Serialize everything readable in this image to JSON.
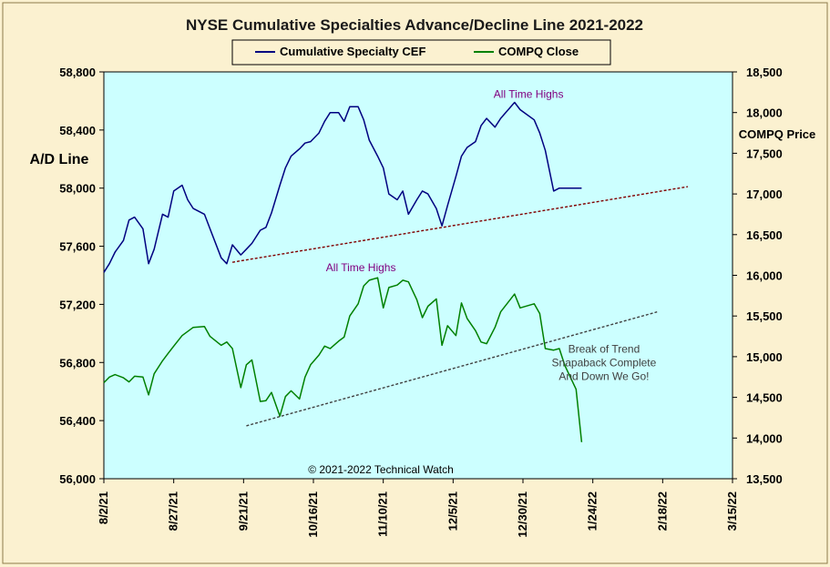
{
  "chart_data": {
    "type": "line",
    "title": "NYSE Cumulative  Specialties  Advance/Decline  Line  2021-2022",
    "ylabel_left": "A/D Line",
    "ylabel_right": "COMPQ Price",
    "ylim_left": [
      56000,
      58800
    ],
    "ylim_right": [
      13500,
      18500
    ],
    "y_ticks_left": [
      "58,800",
      "58,400",
      "58,000",
      "57,600",
      "57,200",
      "56,800",
      "56,400",
      "56,000"
    ],
    "y_ticks_right": [
      "18,500",
      "18,000",
      "17,500",
      "17,000",
      "16,500",
      "16,000",
      "15,500",
      "15,000",
      "14,500",
      "14,000",
      "13,500"
    ],
    "x_ticks": [
      "8/2/21",
      "8/27/21",
      "9/21/21",
      "10/16/21",
      "11/10/21",
      "12/5/21",
      "12/30/21",
      "1/24/22",
      "2/18/22",
      "3/15/22"
    ],
    "x_range": [
      "2021-08-02",
      "2022-03-15"
    ],
    "grid": false,
    "legend_position": "top-center",
    "colors": {
      "plot_bg": "#ccffff",
      "frame_bg": "#fbf1d0",
      "ad_line": "#000080",
      "compq": "#008000",
      "ad_trend": "#800000",
      "compq_trend": "#404040",
      "annotation_high": "#800080",
      "annotation_break": "#404040"
    },
    "series": [
      {
        "name": "Cumulative Specialty CEF",
        "axis": "left",
        "x": [
          "2021-08-02",
          "2021-08-04",
          "2021-08-06",
          "2021-08-09",
          "2021-08-11",
          "2021-08-13",
          "2021-08-16",
          "2021-08-18",
          "2021-08-20",
          "2021-08-23",
          "2021-08-25",
          "2021-08-27",
          "2021-08-30",
          "2021-09-01",
          "2021-09-03",
          "2021-09-07",
          "2021-09-09",
          "2021-09-13",
          "2021-09-15",
          "2021-09-17",
          "2021-09-20",
          "2021-09-22",
          "2021-09-24",
          "2021-09-27",
          "2021-09-29",
          "2021-10-01",
          "2021-10-04",
          "2021-10-06",
          "2021-10-08",
          "2021-10-11",
          "2021-10-13",
          "2021-10-15",
          "2021-10-18",
          "2021-10-20",
          "2021-10-22",
          "2021-10-25",
          "2021-10-27",
          "2021-10-29",
          "2021-11-01",
          "2021-11-03",
          "2021-11-05",
          "2021-11-08",
          "2021-11-10",
          "2021-11-12",
          "2021-11-15",
          "2021-11-17",
          "2021-11-19",
          "2021-11-22",
          "2021-11-24",
          "2021-11-26",
          "2021-11-29",
          "2021-12-01",
          "2021-12-03",
          "2021-12-06",
          "2021-12-08",
          "2021-12-10",
          "2021-12-13",
          "2021-12-15",
          "2021-12-17",
          "2021-12-20",
          "2021-12-22",
          "2021-12-27",
          "2021-12-29",
          "2022-01-03",
          "2022-01-05",
          "2022-01-07",
          "2022-01-10",
          "2022-01-12",
          "2022-01-14",
          "2022-01-18",
          "2022-01-20"
        ],
        "values": [
          57420,
          57480,
          57560,
          57640,
          57780,
          57800,
          57720,
          57480,
          57580,
          57820,
          57800,
          57980,
          58020,
          57920,
          57860,
          57820,
          57720,
          57520,
          57480,
          57610,
          57540,
          57580,
          57620,
          57710,
          57730,
          57830,
          58020,
          58140,
          58220,
          58270,
          58310,
          58320,
          58380,
          58460,
          58520,
          58520,
          58460,
          58560,
          58560,
          58470,
          58330,
          58220,
          58140,
          57960,
          57920,
          57980,
          57820,
          57920,
          57980,
          57960,
          57860,
          57740,
          57880,
          58080,
          58220,
          58280,
          58320,
          58430,
          58480,
          58420,
          58480,
          58590,
          58540,
          58470,
          58380,
          58260,
          57980,
          58000,
          58000,
          58000,
          58000
        ]
      },
      {
        "name": "COMPQ Close",
        "axis": "right",
        "x": [
          "2021-08-02",
          "2021-08-04",
          "2021-08-06",
          "2021-08-09",
          "2021-08-11",
          "2021-08-13",
          "2021-08-16",
          "2021-08-18",
          "2021-08-20",
          "2021-08-23",
          "2021-08-25",
          "2021-08-27",
          "2021-08-30",
          "2021-09-01",
          "2021-09-03",
          "2021-09-07",
          "2021-09-09",
          "2021-09-13",
          "2021-09-15",
          "2021-09-17",
          "2021-09-20",
          "2021-09-22",
          "2021-09-24",
          "2021-09-27",
          "2021-09-29",
          "2021-10-01",
          "2021-10-04",
          "2021-10-06",
          "2021-10-08",
          "2021-10-11",
          "2021-10-13",
          "2021-10-15",
          "2021-10-18",
          "2021-10-20",
          "2021-10-22",
          "2021-10-25",
          "2021-10-27",
          "2021-10-29",
          "2021-11-01",
          "2021-11-03",
          "2021-11-05",
          "2021-11-08",
          "2021-11-10",
          "2021-11-12",
          "2021-11-15",
          "2021-11-17",
          "2021-11-19",
          "2021-11-22",
          "2021-11-24",
          "2021-11-26",
          "2021-11-29",
          "2021-12-01",
          "2021-12-03",
          "2021-12-06",
          "2021-12-08",
          "2021-12-10",
          "2021-12-13",
          "2021-12-15",
          "2021-12-17",
          "2021-12-20",
          "2021-12-22",
          "2021-12-27",
          "2021-12-29",
          "2022-01-03",
          "2022-01-05",
          "2022-01-07",
          "2022-01-10",
          "2022-01-12",
          "2022-01-14",
          "2022-01-18",
          "2022-01-20"
        ],
        "values": [
          14680,
          14750,
          14780,
          14740,
          14690,
          14760,
          14750,
          14530,
          14790,
          14950,
          15040,
          15130,
          15260,
          15310,
          15360,
          15370,
          15250,
          15140,
          15180,
          15100,
          14620,
          14900,
          14960,
          14450,
          14460,
          14560,
          14270,
          14510,
          14580,
          14480,
          14750,
          14900,
          15020,
          15130,
          15100,
          15190,
          15240,
          15500,
          15650,
          15870,
          15940,
          15970,
          15600,
          15850,
          15880,
          15940,
          15920,
          15700,
          15480,
          15620,
          15710,
          15140,
          15380,
          15260,
          15660,
          15470,
          15320,
          15180,
          15160,
          15360,
          15550,
          15770,
          15600,
          15650,
          15530,
          15100,
          15080,
          15100,
          14890,
          14600,
          13950
        ]
      }
    ],
    "trendlines": [
      {
        "name": "A/D trend",
        "axis": "left",
        "from": {
          "x": "2021-09-17",
          "y": 57490
        },
        "to": {
          "x": "2022-02-27",
          "y": 58010
        }
      },
      {
        "name": "COMPQ trend",
        "axis": "right",
        "from": {
          "x": "2021-09-22",
          "y": 14150
        },
        "to": {
          "x": "2022-02-16",
          "y": 15550
        }
      }
    ],
    "annotations": [
      {
        "text": "All Time Highs",
        "series": "Cumulative Specialty CEF",
        "x": "2022-01-01",
        "y": 58620
      },
      {
        "text": "All Time Highs",
        "series": "COMPQ Close",
        "x": "2021-11-02",
        "y": 16050
      },
      {
        "text": [
          "Break of Trend",
          "Snapaback Complete",
          "And Down We Go!"
        ],
        "series": "COMPQ Close",
        "x": "2022-01-28",
        "y": 15050
      },
      {
        "text": "© 2021-2022  Technical Watch",
        "position": "bottom-center"
      }
    ]
  }
}
